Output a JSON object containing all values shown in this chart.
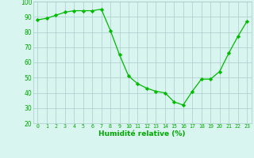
{
  "x": [
    0,
    1,
    2,
    3,
    4,
    5,
    6,
    7,
    8,
    9,
    10,
    11,
    12,
    13,
    14,
    15,
    16,
    17,
    18,
    19,
    20,
    21,
    22,
    23
  ],
  "y": [
    88,
    89,
    91,
    93,
    94,
    94,
    94,
    95,
    81,
    65,
    51,
    46,
    43,
    41,
    40,
    34,
    32,
    41,
    49,
    49,
    54,
    66,
    77,
    87
  ],
  "line_color": "#00bb00",
  "marker": "D",
  "marker_size": 2.2,
  "bg_color": "#d8f5f0",
  "grid_color": "#aacccc",
  "xlabel": "Humidité relative (%)",
  "xlabel_color": "#00aa00",
  "tick_color": "#00aa00",
  "ylim": [
    20,
    100
  ],
  "yticks": [
    20,
    30,
    40,
    50,
    60,
    70,
    80,
    90,
    100
  ],
  "xlim": [
    -0.5,
    23.5
  ]
}
